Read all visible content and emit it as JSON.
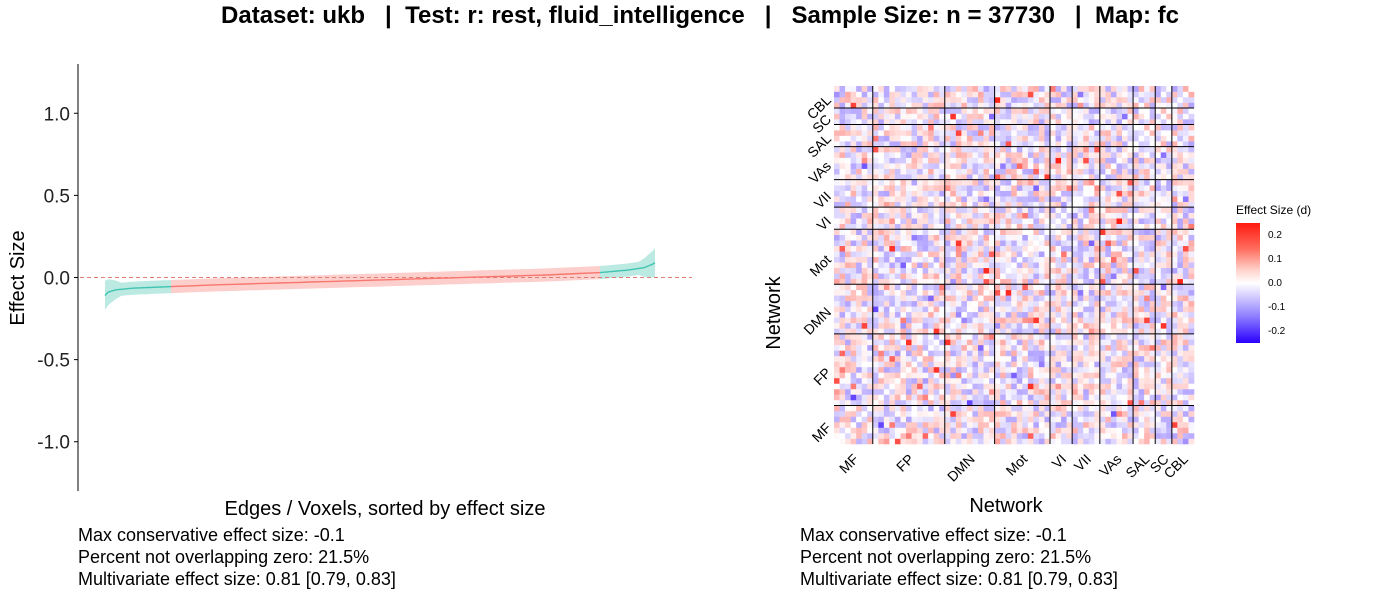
{
  "title": "Dataset: ukb   |  Test: r: rest, fluid_intelligence   |   Sample Size: n = 37730   |  Map: fc",
  "left_stats": [
    "Max conservative effect size: -0.1",
    "Percent not overlapping zero: 21.5%",
    "Multivariate effect size: 0.81 [0.79, 0.83]"
  ],
  "right_stats": [
    "Max conservative effect size: -0.1",
    "Percent not overlapping zero: 21.5%",
    "Multivariate effect size: 0.81 [0.79, 0.83]"
  ],
  "legend": {
    "title": "Effect Size (d)",
    "ticks": [
      "0.2",
      "0.1",
      "0.0",
      "-0.1",
      "-0.2"
    ],
    "colors": {
      "high": "#ff1a10",
      "mid": "#ffffff",
      "low": "#2a00ff"
    }
  },
  "chart_data": [
    {
      "type": "line",
      "title": "",
      "xlabel": "Edges / Voxels, sorted by effect size",
      "ylabel": "Effect Size",
      "ylim": [
        -1.3,
        1.3
      ],
      "yticks": [
        "1.0",
        "0.5",
        "0.0",
        "-0.5",
        "-1.0"
      ],
      "x": [
        0,
        0.005,
        0.02,
        0.05,
        0.1,
        0.2,
        0.3,
        0.4,
        0.5,
        0.6,
        0.7,
        0.8,
        0.9,
        0.95,
        0.98,
        0.995,
        1.0
      ],
      "series": [
        {
          "values": [
            -0.11,
            -0.09,
            -0.075,
            -0.065,
            -0.058,
            -0.045,
            -0.035,
            -0.025,
            -0.015,
            -0.005,
            0.005,
            0.015,
            0.03,
            0.045,
            0.06,
            0.08,
            0.09
          ]
        }
      ],
      "ci_halfwidth": 0.04,
      "reference_line": 0,
      "colors": {
        "overlapping_zero": "#f8766d",
        "not_overlapping_zero": "#3ec4b0",
        "reference": "#e07d75"
      },
      "not_overlapping_ranges": [
        [
          0,
          0.12
        ],
        [
          0.9,
          1.0
        ]
      ]
    },
    {
      "type": "heatmap",
      "title": "",
      "xlabel": "Network",
      "ylabel": "Network",
      "networks": [
        "MF",
        "FP",
        "DMN",
        "Mot",
        "VI",
        "VII",
        "VAs",
        "SAL",
        "SC",
        "CBL"
      ],
      "network_sizes": [
        7,
        13,
        9,
        10,
        4,
        5,
        6,
        4,
        3,
        4
      ],
      "value_range": [
        -0.25,
        0.25
      ],
      "colors": {
        "high": "#ff1a10",
        "mid": "#ffffff",
        "low": "#2a00ff",
        "grid": "#000000"
      }
    }
  ]
}
